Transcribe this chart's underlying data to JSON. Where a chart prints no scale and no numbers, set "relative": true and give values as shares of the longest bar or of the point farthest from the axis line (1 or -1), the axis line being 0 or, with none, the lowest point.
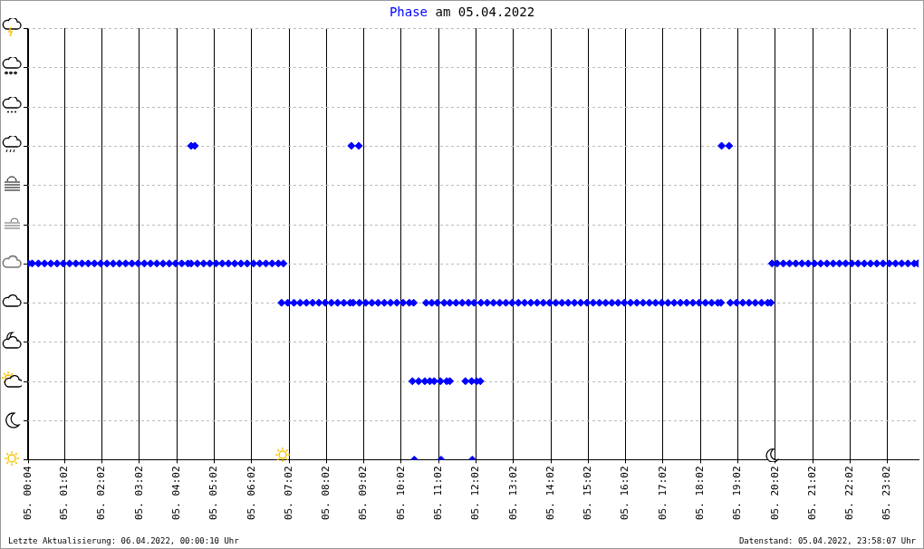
{
  "chart_data": {
    "type": "scatter",
    "title": "am 05.04.2022",
    "relative": true,
    "marker": "diamond",
    "grid": "x",
    "legend": false,
    "xlim": [
      "2022-04-05T00:02",
      "2022-04-05T23:52"
    ],
    "xticks": [
      {
        "value": "2022-04-05T00:04",
        "label": "05. 00:04"
      },
      {
        "value": "2022-04-05T01:02",
        "label": "05. 01:02"
      },
      {
        "value": "2022-04-05T02:02",
        "label": "05. 02:02"
      },
      {
        "value": "2022-04-05T03:02",
        "label": "05. 03:02"
      },
      {
        "value": "2022-04-05T04:02",
        "label": "05. 04:02"
      },
      {
        "value": "2022-04-05T05:02",
        "label": "05. 05:02"
      },
      {
        "value": "2022-04-05T06:02",
        "label": "05. 06:02"
      },
      {
        "value": "2022-04-05T07:02",
        "label": "05. 07:02"
      },
      {
        "value": "2022-04-05T08:02",
        "label": "05. 08:02"
      },
      {
        "value": "2022-04-05T09:02",
        "label": "05. 09:02"
      },
      {
        "value": "2022-04-05T10:02",
        "label": "05. 10:02"
      },
      {
        "value": "2022-04-05T11:02",
        "label": "05. 11:02"
      },
      {
        "value": "2022-04-05T12:02",
        "label": "05. 12:02"
      },
      {
        "value": "2022-04-05T13:02",
        "label": "05. 13:02"
      },
      {
        "value": "2022-04-05T14:02",
        "label": "05. 14:02"
      },
      {
        "value": "2022-04-05T15:02",
        "label": "05. 15:02"
      },
      {
        "value": "2022-04-05T16:02",
        "label": "05. 16:02"
      },
      {
        "value": "2022-04-05T17:02",
        "label": "05. 17:02"
      },
      {
        "value": "2022-04-05T18:02",
        "label": "05. 18:02"
      },
      {
        "value": "2022-04-05T19:02",
        "label": "05. 19:02"
      },
      {
        "value": "2022-04-05T20:02",
        "label": "05. 20:02"
      },
      {
        "value": "2022-04-05T21:02",
        "label": "05. 21:02"
      },
      {
        "value": "2022-04-05T22:02",
        "label": "05. 22:02"
      },
      {
        "value": "2022-04-05T23:02",
        "label": "05. 23:02"
      }
    ],
    "annotations": [
      "Letzte Aktualisierung: 06.04.2022, 00:00:10 Uhr",
      "Datenstand: 05.04.2022, 23:58:07 Uhr"
    ],
    "series": [
      {
        "name": "Phase",
        "color": "#0000ff",
        "x": [
          "2022-04-05T00:04",
          "2022-04-05T00:10",
          "2022-04-05T00:20",
          "2022-04-05T00:30",
          "2022-04-05T00:40",
          "2022-04-05T00:50",
          "2022-04-05T01:00",
          "2022-04-05T01:10",
          "2022-04-05T01:20",
          "2022-04-05T01:30",
          "2022-04-05T01:40",
          "2022-04-05T01:50",
          "2022-04-05T02:00",
          "2022-04-05T02:10",
          "2022-04-05T02:20",
          "2022-04-05T02:30",
          "2022-04-05T02:40",
          "2022-04-05T02:50",
          "2022-04-05T03:00",
          "2022-04-05T03:10",
          "2022-04-05T03:20",
          "2022-04-05T03:30",
          "2022-04-05T03:40",
          "2022-04-05T03:50",
          "2022-04-05T04:00",
          "2022-04-05T04:10",
          "2022-04-05T04:20",
          "2022-04-05T04:25",
          "2022-04-05T04:25",
          "2022-04-05T04:31",
          "2022-04-05T04:35",
          "2022-04-05T04:45",
          "2022-04-05T04:55",
          "2022-04-05T05:05",
          "2022-04-05T05:15",
          "2022-04-05T05:25",
          "2022-04-05T05:35",
          "2022-04-05T05:45",
          "2022-04-05T05:55",
          "2022-04-05T06:05",
          "2022-04-05T06:15",
          "2022-04-05T06:25",
          "2022-04-05T06:35",
          "2022-04-05T06:45",
          "2022-04-05T06:53",
          "2022-04-05T06:50",
          "2022-04-05T07:00",
          "2022-04-05T07:10",
          "2022-04-05T07:20",
          "2022-04-05T07:30",
          "2022-04-05T07:40",
          "2022-04-05T07:50",
          "2022-04-05T08:00",
          "2022-04-05T08:10",
          "2022-04-05T08:20",
          "2022-04-05T08:30",
          "2022-04-05T08:40",
          "2022-04-05T08:45",
          "2022-04-05T08:42",
          "2022-04-05T08:54",
          "2022-04-05T08:55",
          "2022-04-05T09:05",
          "2022-04-05T09:15",
          "2022-04-05T09:25",
          "2022-04-05T09:35",
          "2022-04-05T09:45",
          "2022-04-05T09:55",
          "2022-04-05T10:05",
          "2022-04-05T10:15",
          "2022-04-05T10:22",
          "2022-04-05T10:20",
          "2022-04-05T10:30",
          "2022-04-05T10:40",
          "2022-04-05T10:48",
          "2022-04-05T10:23",
          "2022-04-05T10:42",
          "2022-04-05T10:51",
          "2022-04-05T11:00",
          "2022-04-05T10:55",
          "2022-04-05T11:05",
          "2022-04-05T11:15",
          "2022-04-05T11:20",
          "2022-04-05T11:06",
          "2022-04-05T11:11",
          "2022-04-05T11:20",
          "2022-04-05T11:30",
          "2022-04-05T11:40",
          "2022-04-05T11:50",
          "2022-04-05T11:45",
          "2022-04-05T11:55",
          "2022-04-05T12:03",
          "2022-04-05T12:09",
          "2022-04-05T11:56",
          "2022-04-05T11:59",
          "2022-04-05T12:10",
          "2022-04-05T12:20",
          "2022-04-05T12:30",
          "2022-04-05T12:40",
          "2022-04-05T12:50",
          "2022-04-05T13:00",
          "2022-04-05T13:10",
          "2022-04-05T13:20",
          "2022-04-05T13:30",
          "2022-04-05T13:40",
          "2022-04-05T13:50",
          "2022-04-05T14:00",
          "2022-04-05T14:10",
          "2022-04-05T14:20",
          "2022-04-05T14:30",
          "2022-04-05T14:40",
          "2022-04-05T14:50",
          "2022-04-05T15:00",
          "2022-04-05T15:10",
          "2022-04-05T15:20",
          "2022-04-05T15:30",
          "2022-04-05T15:40",
          "2022-04-05T15:50",
          "2022-04-05T16:00",
          "2022-04-05T16:10",
          "2022-04-05T16:20",
          "2022-04-05T16:30",
          "2022-04-05T16:40",
          "2022-04-05T16:50",
          "2022-04-05T17:00",
          "2022-04-05T17:10",
          "2022-04-05T17:20",
          "2022-04-05T17:30",
          "2022-04-05T17:40",
          "2022-04-05T17:50",
          "2022-04-05T18:00",
          "2022-04-05T18:10",
          "2022-04-05T18:20",
          "2022-04-05T18:30",
          "2022-04-05T18:35",
          "2022-04-05T18:36",
          "2022-04-05T18:48",
          "2022-04-05T18:50",
          "2022-04-05T19:00",
          "2022-04-05T19:10",
          "2022-04-05T19:20",
          "2022-04-05T19:30",
          "2022-04-05T19:40",
          "2022-04-05T19:50",
          "2022-04-05T19:55",
          "2022-04-05T19:57",
          "2022-04-05T20:05",
          "2022-04-05T20:15",
          "2022-04-05T20:25",
          "2022-04-05T20:35",
          "2022-04-05T20:45",
          "2022-04-05T20:55",
          "2022-04-05T21:05",
          "2022-04-05T21:15",
          "2022-04-05T21:25",
          "2022-04-05T21:35",
          "2022-04-05T21:45",
          "2022-04-05T21:55",
          "2022-04-05T22:05",
          "2022-04-05T22:15",
          "2022-04-05T22:25",
          "2022-04-05T22:35",
          "2022-04-05T22:45",
          "2022-04-05T22:55",
          "2022-04-05T23:05",
          "2022-04-05T23:15",
          "2022-04-05T23:25",
          "2022-04-05T23:35",
          "2022-04-05T23:45",
          "2022-04-05T23:51"
        ],
        "values": [
          0.625,
          0.625,
          0.625,
          0.625,
          0.625,
          0.625,
          0.625,
          0.625,
          0.625,
          0.625,
          0.625,
          0.625,
          0.625,
          0.625,
          0.625,
          0.625,
          0.625,
          0.625,
          0.625,
          0.625,
          0.625,
          0.625,
          0.625,
          0.625,
          0.625,
          0.625,
          0.625,
          0.625,
          1,
          1,
          0.625,
          0.625,
          0.625,
          0.625,
          0.625,
          0.625,
          0.625,
          0.625,
          0.625,
          0.625,
          0.625,
          0.625,
          0.625,
          0.625,
          0.625,
          0.5,
          0.5,
          0.5,
          0.5,
          0.5,
          0.5,
          0.5,
          0.5,
          0.5,
          0.5,
          0.5,
          0.5,
          0.5,
          1,
          1,
          0.5,
          0.5,
          0.5,
          0.5,
          0.5,
          0.5,
          0.5,
          0.5,
          0.5,
          0.5,
          0.25,
          0.25,
          0.25,
          0.25,
          0,
          0.5,
          0.5,
          0.5,
          0.25,
          0.25,
          0.25,
          0.25,
          0,
          0.5,
          0.5,
          0.5,
          0.5,
          0.5,
          0.25,
          0.25,
          0.25,
          0.25,
          0,
          0.5,
          0.5,
          0.5,
          0.5,
          0.5,
          0.5,
          0.5,
          0.5,
          0.5,
          0.5,
          0.5,
          0.5,
          0.5,
          0.5,
          0.5,
          0.5,
          0.5,
          0.5,
          0.5,
          0.5,
          0.5,
          0.5,
          0.5,
          0.5,
          0.5,
          0.5,
          0.5,
          0.5,
          0.5,
          0.5,
          0.5,
          0.5,
          0.5,
          0.5,
          0.5,
          0.5,
          0.5,
          0.5,
          0.5,
          0.5,
          0.5,
          1,
          1,
          0.5,
          0.5,
          0.5,
          0.5,
          0.5,
          0.5,
          0.5,
          0.5,
          0.625,
          0.625,
          0.625,
          0.625,
          0.625,
          0.625,
          0.625,
          0.625,
          0.625,
          0.625,
          0.625,
          0.625,
          0.625,
          0.625,
          0.625,
          0.625,
          0.625,
          0.625,
          0.625,
          0.625,
          0.625,
          0.625,
          0.625,
          0.625,
          0.625
        ]
      }
    ]
  }
}
